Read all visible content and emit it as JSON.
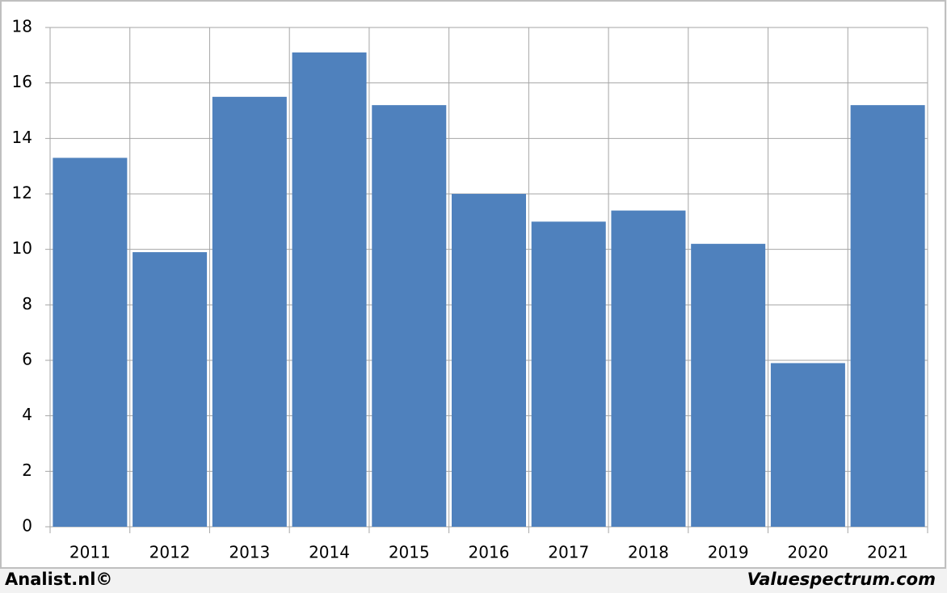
{
  "chart_data": {
    "type": "bar",
    "categories": [
      "2011",
      "2012",
      "2013",
      "2014",
      "2015",
      "2016",
      "2017",
      "2018",
      "2019",
      "2020",
      "2021"
    ],
    "values": [
      13.3,
      9.9,
      15.5,
      17.1,
      15.2,
      12.0,
      11.0,
      11.4,
      10.2,
      5.9,
      15.2
    ],
    "color": "#4f81bd",
    "ylim": [
      0,
      18
    ],
    "yticks": [
      0,
      2,
      4,
      6,
      8,
      10,
      12,
      14,
      16,
      18
    ],
    "grid": true,
    "footer_left": "Analist.nl©",
    "footer_right": "Valuespectrum.com"
  }
}
